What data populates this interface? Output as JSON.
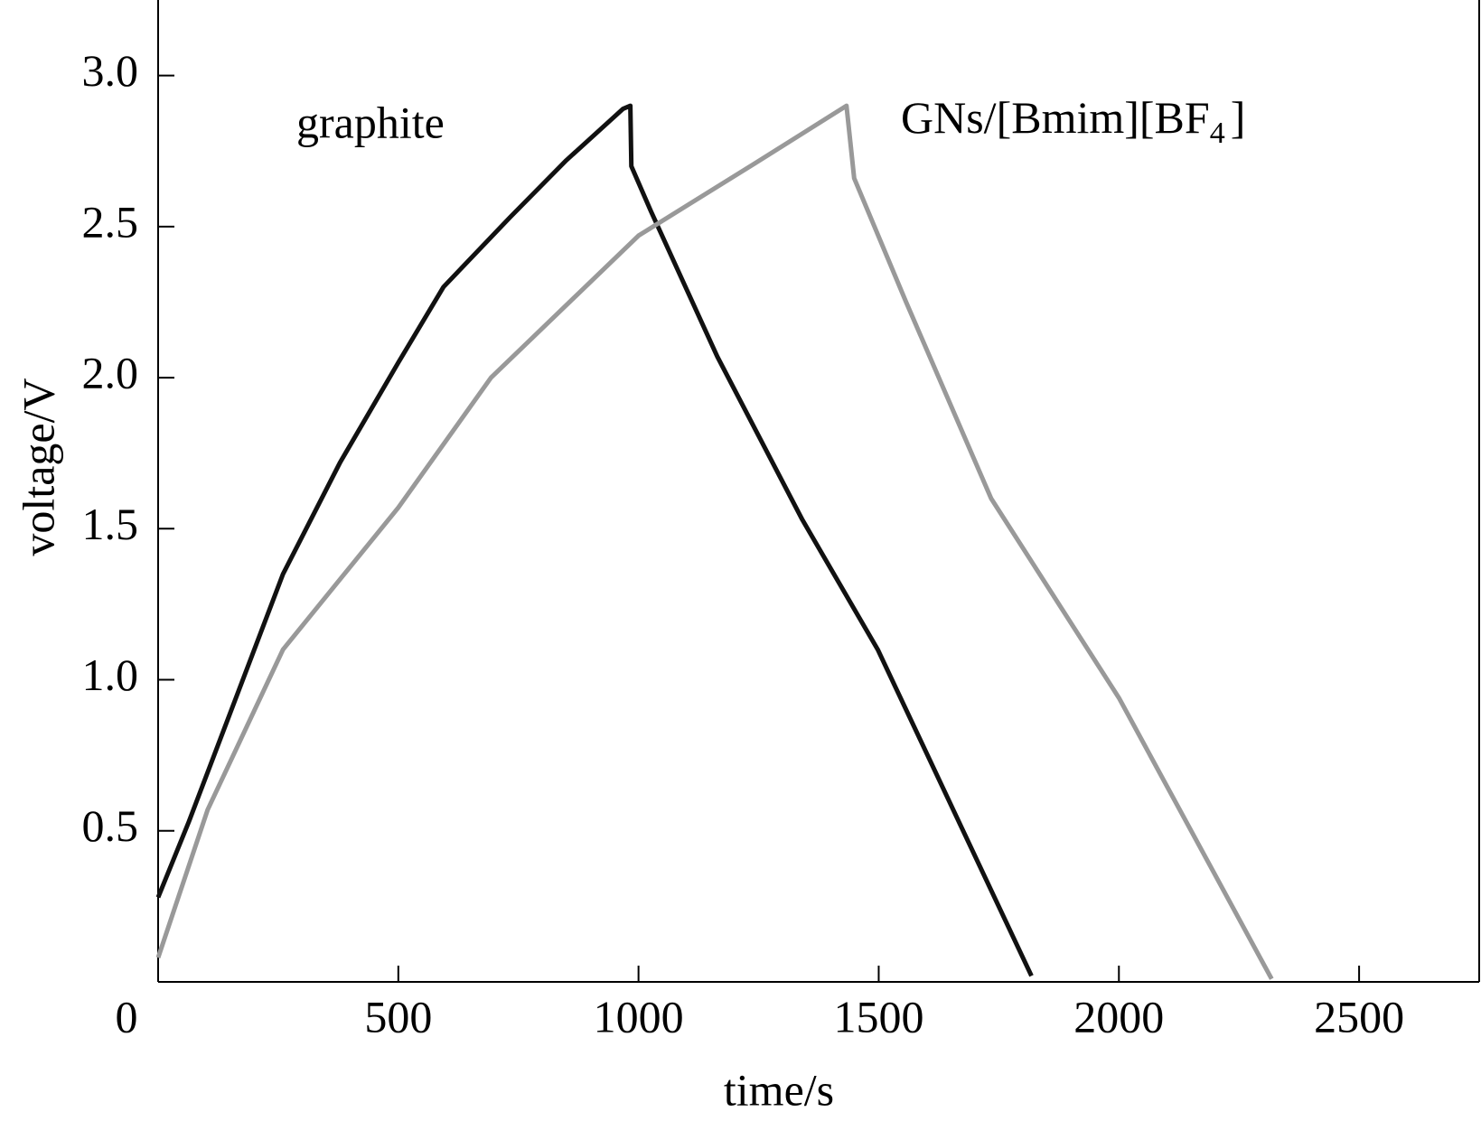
{
  "chart_data": {
    "type": "line",
    "xlabel": "time/s",
    "ylabel": "voltage/V",
    "annotations": [
      {
        "text": "graphite"
      },
      {
        "text": "GNs/[Bmim][BF",
        "sub": "4",
        "tail": "]"
      }
    ],
    "xlim": [
      0,
      2750
    ],
    "xticks": [
      0,
      500,
      1000,
      1500,
      2000,
      2500
    ],
    "ylim": [
      0,
      3.25
    ],
    "yticks": [
      {
        "value": 0.5,
        "label": "0.5"
      },
      {
        "value": 1,
        "label": "1.0"
      },
      {
        "value": 1.5,
        "label": "1.5"
      },
      {
        "value": 2,
        "label": "2.0"
      },
      {
        "value": 2.5,
        "label": "2.5"
      },
      {
        "value": 3,
        "label": "3.0"
      }
    ],
    "series": [
      {
        "color": "#111111",
        "x": [
          0,
          64,
          162,
          260,
          379,
          500,
          594,
          732,
          850,
          968,
          983,
          985,
          1026,
          1164,
          1341,
          1498,
          1655,
          1818
        ],
        "values": [
          0.28,
          0.53,
          0.94,
          1.35,
          1.72,
          2.05,
          2.3,
          2.53,
          2.72,
          2.89,
          2.9,
          2.7,
          2.55,
          2.07,
          1.53,
          1.1,
          0.57,
          0.02
        ]
      },
      {
        "color": "#999999",
        "x": [
          0,
          103,
          260,
          500,
          693,
          1000,
          1243,
          1433,
          1449,
          1557,
          1734,
          2000,
          2318
        ],
        "values": [
          0.08,
          0.57,
          1.1,
          1.57,
          2.0,
          2.47,
          2.71,
          2.9,
          2.66,
          2.25,
          1.6,
          0.94,
          0.01
        ]
      }
    ]
  }
}
